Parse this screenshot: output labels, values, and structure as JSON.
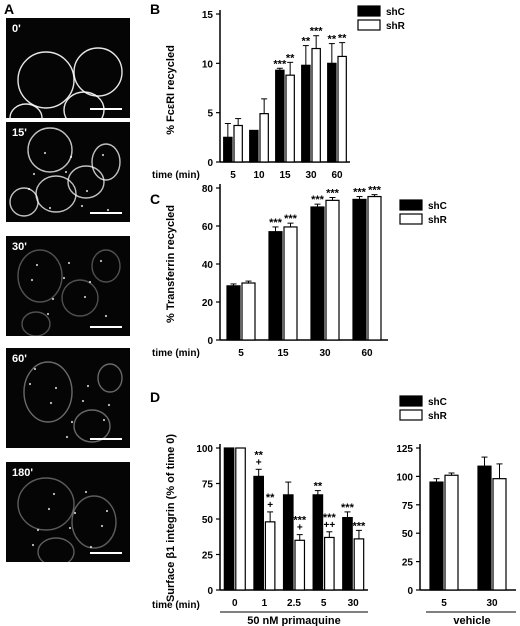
{
  "micrographs": {
    "panel_letter": "A",
    "frames": [
      {
        "label": "0'"
      },
      {
        "label": "15'"
      },
      {
        "label": "30'"
      },
      {
        "label": "60'"
      },
      {
        "label": "180'"
      }
    ]
  },
  "chart_data": [
    {
      "panel_letter": "B",
      "type": "bar",
      "ylabel": "% FcεRI recycled",
      "xlabel_prefix": "time (min)",
      "categories": [
        "5",
        "10",
        "15",
        "30",
        "60"
      ],
      "ylim": [
        0,
        15
      ],
      "yticks": [
        0,
        5,
        10,
        15
      ],
      "legend": {
        "position": "top-right",
        "entries": [
          "shC",
          "shR"
        ]
      },
      "colors": {
        "shC": "#000000",
        "shR": "#ffffff"
      },
      "series": [
        {
          "name": "shC",
          "values": [
            2.5,
            3.2,
            9.3,
            9.8,
            10.0
          ],
          "errors": [
            1.4,
            0,
            0.2,
            2.0,
            2.0
          ],
          "marks": [
            "",
            "",
            "***",
            "**",
            "**"
          ]
        },
        {
          "name": "shR",
          "values": [
            3.7,
            4.9,
            8.8,
            11.5,
            10.7
          ],
          "errors": [
            0.7,
            1.5,
            1.3,
            1.3,
            1.4
          ],
          "marks": [
            "",
            "",
            "**",
            "***",
            "**"
          ]
        }
      ]
    },
    {
      "panel_letter": "C",
      "type": "bar",
      "ylabel": "% Transferrin recycled",
      "xlabel_prefix": "time (min)",
      "categories": [
        "5",
        "15",
        "30",
        "60"
      ],
      "ylim": [
        0,
        80
      ],
      "yticks": [
        0,
        20,
        40,
        60,
        80
      ],
      "legend": {
        "position": "top-right",
        "entries": [
          "shC",
          "shR"
        ]
      },
      "colors": {
        "shC": "#000000",
        "shR": "#ffffff"
      },
      "series": [
        {
          "name": "shC",
          "values": [
            28.5,
            57,
            70,
            74
          ],
          "errors": [
            1,
            2.5,
            1.5,
            1.5
          ],
          "marks": [
            "",
            "***",
            "***",
            "***"
          ]
        },
        {
          "name": "shR",
          "values": [
            30,
            59.5,
            73.5,
            75.5
          ],
          "errors": [
            1,
            2,
            1.5,
            1
          ],
          "marks": [
            "",
            "***",
            "***",
            "***"
          ]
        }
      ]
    },
    {
      "panel_letter": "D",
      "type": "bar",
      "ylabel": "Surface β1 integrin   (% of time 0)",
      "xlabel_prefix": "time (min)",
      "groups": [
        {
          "group_label": "50 nM primaquine",
          "categories": [
            "0",
            "1",
            "2.5",
            "5",
            "30"
          ],
          "ylim": [
            0,
            100
          ],
          "yticks": [
            0,
            25,
            50,
            75,
            100
          ],
          "series": [
            {
              "name": "shC",
              "values": [
                100,
                80,
                67,
                67,
                51
              ],
              "errors": [
                0,
                5,
                9,
                3,
                4
              ],
              "marks": [
                "",
                "**",
                "",
                "**",
                "***"
              ],
              "marks2": [
                "",
                "+",
                "",
                "",
                ""
              ]
            },
            {
              "name": "shR",
              "values": [
                100,
                48,
                35,
                37,
                36
              ],
              "errors": [
                0,
                7,
                4,
                4,
                6
              ],
              "marks": [
                "",
                "**",
                "***",
                "***",
                "***"
              ],
              "marks2": [
                "",
                "+",
                "+",
                "++",
                ""
              ]
            }
          ]
        },
        {
          "group_label": "vehicle",
          "categories": [
            "5",
            "30"
          ],
          "ylim": [
            0,
            125
          ],
          "yticks": [
            0,
            25,
            50,
            75,
            100,
            125
          ],
          "series": [
            {
              "name": "shC",
              "values": [
                95,
                109
              ],
              "errors": [
                3,
                8
              ],
              "marks": [
                "",
                ""
              ],
              "marks2": [
                "",
                ""
              ]
            },
            {
              "name": "shR",
              "values": [
                101,
                98
              ],
              "errors": [
                2,
                13
              ],
              "marks": [
                "",
                ""
              ],
              "marks2": [
                "",
                ""
              ]
            }
          ]
        }
      ],
      "legend": {
        "position": "top-right",
        "entries": [
          "shC",
          "shR"
        ]
      },
      "colors": {
        "shC": "#000000",
        "shR": "#ffffff"
      }
    }
  ]
}
